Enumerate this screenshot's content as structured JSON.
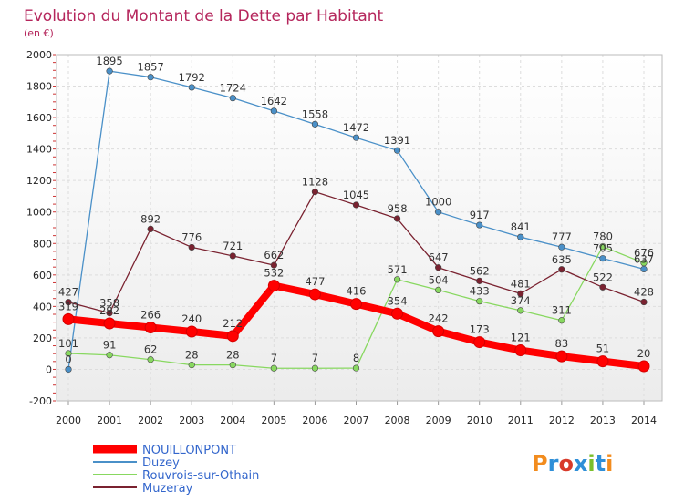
{
  "chart_data": {
    "type": "line",
    "title": "Evolution du Montant de la Dette par Habitant",
    "subtitle": "(en €)",
    "x": [
      2000,
      2001,
      2002,
      2003,
      2004,
      2005,
      2006,
      2007,
      2008,
      2009,
      2010,
      2011,
      2012,
      2013,
      2014
    ],
    "ylim": [
      -200,
      2000
    ],
    "yticks": [
      -200,
      0,
      200,
      400,
      600,
      800,
      1000,
      1200,
      1400,
      1600,
      1800,
      2000
    ],
    "grid": true,
    "legend": "bottom-left",
    "series": [
      {
        "name": "NOUILLONPONT",
        "color": "#ff0000",
        "values": [
          319,
          292,
          266,
          240,
          212,
          532,
          477,
          416,
          354,
          242,
          173,
          121,
          83,
          51,
          20
        ]
      },
      {
        "name": "Duzey",
        "color": "#4a90c8",
        "values": [
          0,
          1895,
          1857,
          1792,
          1724,
          1642,
          1558,
          1472,
          1391,
          1000,
          917,
          841,
          777,
          705,
          637
        ]
      },
      {
        "name": "Rouvrois-sur-Othain",
        "color": "#88d860",
        "values": [
          101,
          91,
          62,
          28,
          28,
          7,
          7,
          8,
          571,
          504,
          433,
          374,
          311,
          780,
          676
        ]
      },
      {
        "name": "Muzeray",
        "color": "#7a2230",
        "values": [
          427,
          358,
          892,
          776,
          721,
          662,
          1128,
          1045,
          958,
          647,
          562,
          481,
          635,
          522,
          428
        ]
      }
    ]
  },
  "brand": {
    "logo": "Proxiti"
  }
}
